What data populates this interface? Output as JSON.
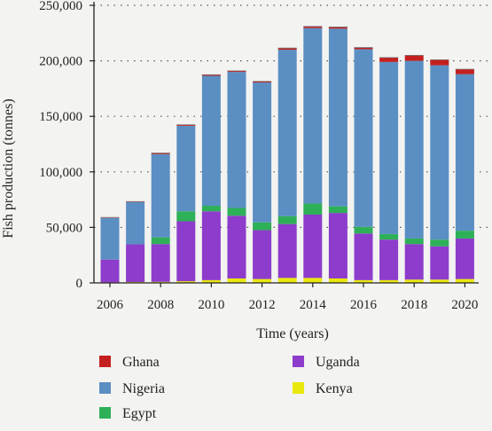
{
  "chart_data": {
    "type": "bar",
    "stacked": true,
    "title": "",
    "xlabel": "Time (years)",
    "ylabel": "Fish production (tonnes)",
    "ylim": [
      0,
      250000
    ],
    "yticks": [
      0,
      50000,
      100000,
      150000,
      200000,
      250000
    ],
    "ytick_labels": [
      "0",
      "50,000",
      "100,000",
      "150,000",
      "200,000",
      "250,000"
    ],
    "xtick_labels": [
      "2006",
      "2008",
      "2010",
      "2012",
      "2014",
      "2016",
      "2018",
      "2020"
    ],
    "categories": [
      "2006",
      "2007",
      "2008",
      "2009",
      "2010",
      "2011",
      "2012",
      "2013",
      "2014",
      "2015",
      "2016",
      "2017",
      "2018",
      "2019",
      "2020"
    ],
    "grid": "horizontal dotted",
    "legend_position": "bottom",
    "series": [
      {
        "name": "Kenya",
        "color": "#e8e80f",
        "values": [
          500,
          800,
          1000,
          1500,
          2500,
          4000,
          3500,
          4500,
          4500,
          4000,
          2500,
          2500,
          3000,
          3000,
          3500
        ]
      },
      {
        "name": "Uganda",
        "color": "#8d3ccb",
        "values": [
          20500,
          34000,
          34000,
          54000,
          62000,
          56500,
          44000,
          48500,
          57000,
          59000,
          42000,
          36500,
          32000,
          30000,
          36500
        ]
      },
      {
        "name": "Egypt",
        "color": "#2eb058",
        "values": [
          0,
          0,
          6000,
          9000,
          5000,
          7000,
          7000,
          7000,
          10000,
          6000,
          6000,
          5000,
          5000,
          6000,
          7000
        ]
      },
      {
        "name": "Nigeria",
        "color": "#5b8fc3",
        "values": [
          37500,
          38000,
          75000,
          77000,
          117000,
          122500,
          126000,
          150000,
          158000,
          160000,
          160000,
          155000,
          160000,
          157000,
          141000
        ]
      },
      {
        "name": "Ghana",
        "color": "#c4201f",
        "values": [
          500,
          500,
          1000,
          1000,
          1000,
          1000,
          1000,
          1500,
          1500,
          1500,
          1500,
          4000,
          5000,
          5000,
          4500
        ]
      }
    ],
    "legend": [
      {
        "name": "Ghana",
        "color": "#c4201f"
      },
      {
        "name": "Uganda",
        "color": "#8d3ccb"
      },
      {
        "name": "Nigeria",
        "color": "#5b8fc3"
      },
      {
        "name": "Kenya",
        "color": "#e8e80f"
      },
      {
        "name": "Egypt",
        "color": "#2eb058"
      }
    ]
  }
}
